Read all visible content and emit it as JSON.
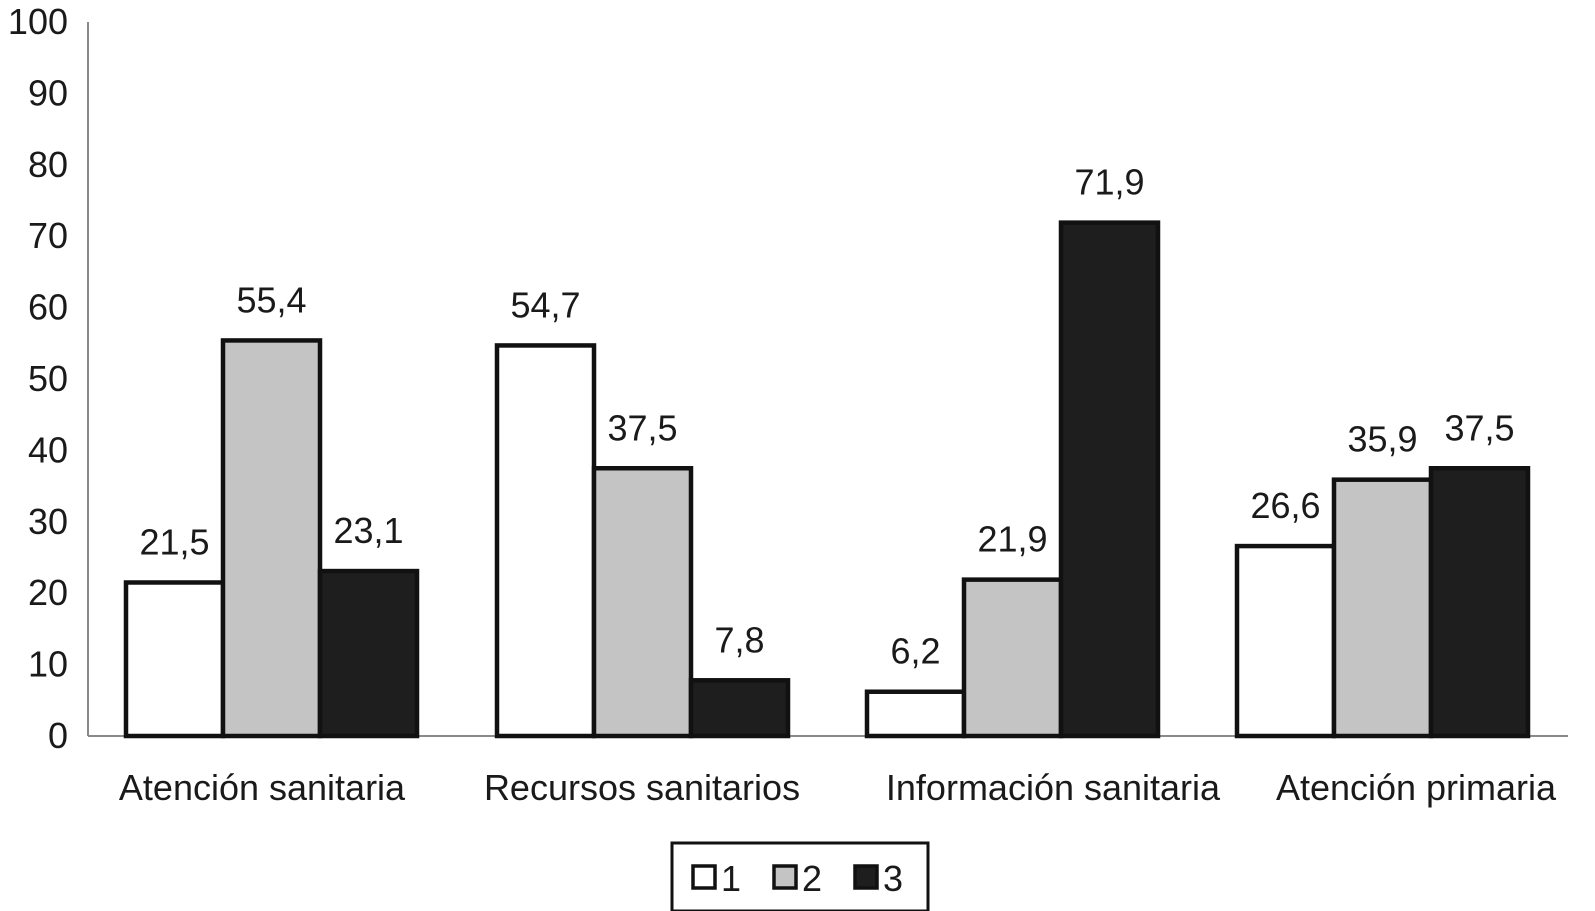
{
  "chart_data": {
    "type": "bar",
    "categories": [
      "Atención sanitaria",
      "Recursos sanitarios",
      "Información sanitaria",
      "Atención primaria"
    ],
    "series": [
      {
        "name": "1",
        "values": [
          21.5,
          54.7,
          6.2,
          26.6
        ],
        "labels": [
          "21,5",
          "54,7",
          "6,2",
          "26,6"
        ],
        "fill": "#ffffff"
      },
      {
        "name": "2",
        "values": [
          55.4,
          37.5,
          21.9,
          35.9
        ],
        "labels": [
          "55,4",
          "37,5",
          "21,9",
          "35,9"
        ],
        "fill": "#c4c4c4"
      },
      {
        "name": "3",
        "values": [
          23.1,
          7.8,
          71.9,
          37.5
        ],
        "labels": [
          "23,1",
          "7,8",
          "71,9",
          "37,5"
        ],
        "fill": "#1e1e1e"
      }
    ],
    "yticks": [
      0,
      10,
      20,
      30,
      40,
      50,
      60,
      70,
      80,
      90,
      100
    ],
    "ylim": [
      0,
      100
    ],
    "title": "",
    "xlabel": "",
    "ylabel": "",
    "grid": false,
    "legend": "bottom-center"
  }
}
